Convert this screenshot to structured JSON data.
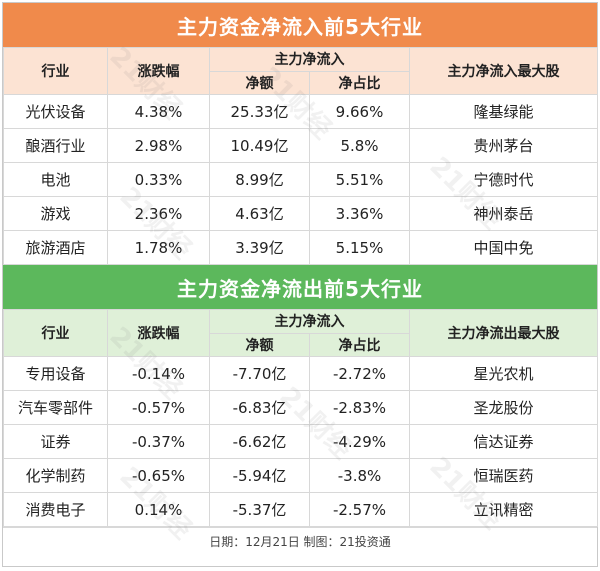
{
  "inflow": {
    "title": "主力资金净流入前5大行业",
    "headers": {
      "industry": "行业",
      "change": "涨跌幅",
      "main_flow": "主力净流入",
      "net_amount": "净额",
      "net_ratio": "净占比",
      "top_stock": "主力净流入最大股"
    },
    "rows": [
      {
        "industry": "光伏设备",
        "change": "4.38%",
        "net_amount": "25.33亿",
        "net_ratio": "9.66%",
        "top_stock": "隆基绿能"
      },
      {
        "industry": "酿酒行业",
        "change": "2.98%",
        "net_amount": "10.49亿",
        "net_ratio": "5.8%",
        "top_stock": "贵州茅台"
      },
      {
        "industry": "电池",
        "change": "0.33%",
        "net_amount": "8.99亿",
        "net_ratio": "5.51%",
        "top_stock": "宁德时代"
      },
      {
        "industry": "游戏",
        "change": "2.36%",
        "net_amount": "4.63亿",
        "net_ratio": "3.36%",
        "top_stock": "神州泰岳"
      },
      {
        "industry": "旅游酒店",
        "change": "1.78%",
        "net_amount": "3.39亿",
        "net_ratio": "5.15%",
        "top_stock": "中国中免"
      }
    ]
  },
  "outflow": {
    "title": "主力资金净流出前5大行业",
    "headers": {
      "industry": "行业",
      "change": "涨跌幅",
      "main_flow": "主力净流入",
      "net_amount": "净额",
      "net_ratio": "净占比",
      "top_stock": "主力净流出最大股"
    },
    "rows": [
      {
        "industry": "专用设备",
        "change": "-0.14%",
        "net_amount": "-7.70亿",
        "net_ratio": "-2.72%",
        "top_stock": "星光农机"
      },
      {
        "industry": "汽车零部件",
        "change": "-0.57%",
        "net_amount": "-6.83亿",
        "net_ratio": "-2.83%",
        "top_stock": "圣龙股份"
      },
      {
        "industry": "证券",
        "change": "-0.37%",
        "net_amount": "-6.62亿",
        "net_ratio": "-4.29%",
        "top_stock": "信达证券"
      },
      {
        "industry": "化学制药",
        "change": "-0.65%",
        "net_amount": "-5.94亿",
        "net_ratio": "-3.8%",
        "top_stock": "恒瑞医药"
      },
      {
        "industry": "消费电子",
        "change": "0.14%",
        "net_amount": "-5.37亿",
        "net_ratio": "-2.57%",
        "top_stock": "立讯精密"
      }
    ]
  },
  "footer": "日期：12月21日 制图：21投资通",
  "watermark": "21财经",
  "colors": {
    "inflow_banner": "#f08a4b",
    "outflow_banner": "#5cb85c",
    "inflow_header": "#fce3d3",
    "outflow_header": "#dff0d8"
  }
}
